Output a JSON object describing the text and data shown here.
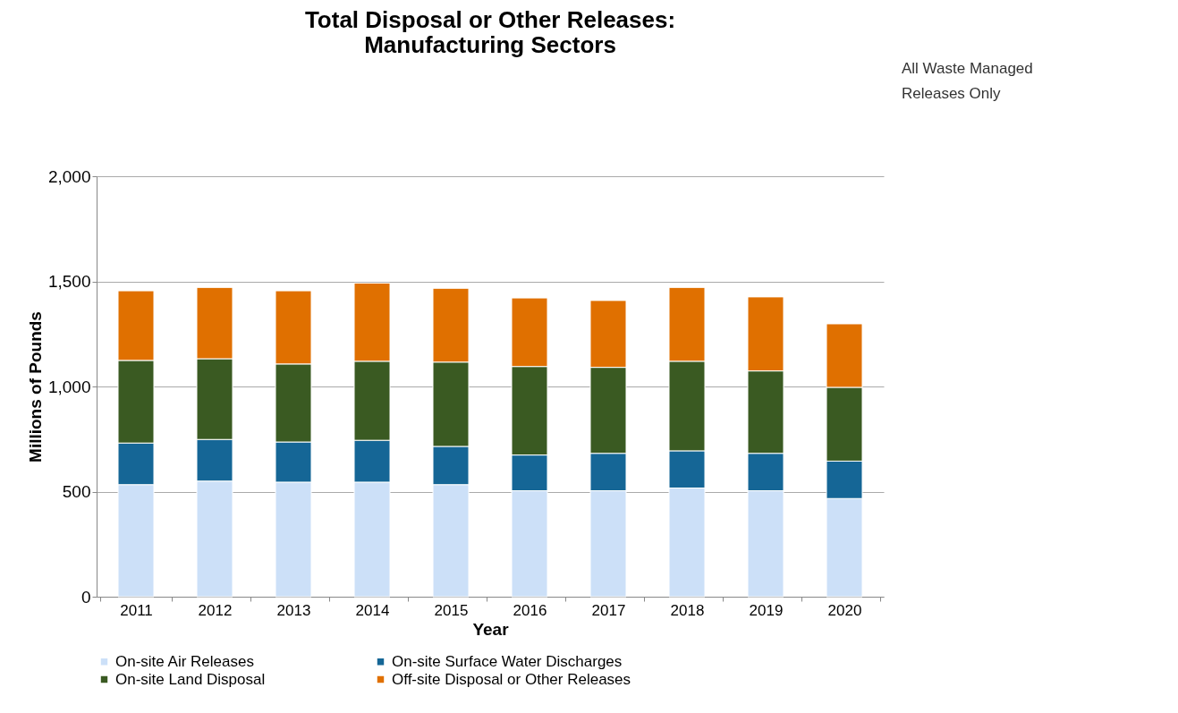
{
  "chart_data": {
    "type": "bar",
    "stacked": true,
    "title": "Total Disposal or Other Releases:\nManufacturing Sectors",
    "xlabel": "Year",
    "ylabel": "Millions of Pounds",
    "categories": [
      "2011",
      "2012",
      "2013",
      "2014",
      "2015",
      "2016",
      "2017",
      "2018",
      "2019",
      "2020"
    ],
    "series": [
      {
        "name": "On-site Air Releases",
        "color": "#cce0f8",
        "values": [
          533,
          550,
          545,
          545,
          533,
          504,
          504,
          517,
          504,
          467
        ]
      },
      {
        "name": "On-site Surface Water Discharges",
        "color": "#156696",
        "values": [
          198,
          198,
          191,
          199,
          182,
          170,
          178,
          177,
          178,
          178
        ]
      },
      {
        "name": "On-site Land Disposal",
        "color": "#3a5a22",
        "values": [
          393,
          384,
          371,
          376,
          401,
          421,
          409,
          426,
          392,
          351
        ]
      },
      {
        "name": "Off-site Disposal or Other Releases",
        "color": "#e07000",
        "values": [
          331,
          339,
          348,
          372,
          351,
          326,
          318,
          351,
          352,
          302
        ]
      }
    ],
    "ylim": [
      0,
      2000
    ],
    "yticks": [
      {
        "value": 0,
        "label": "0"
      },
      {
        "value": 500,
        "label": "500"
      },
      {
        "value": 1000,
        "label": "1,000"
      },
      {
        "value": 1500,
        "label": "1,500"
      },
      {
        "value": 2000,
        "label": "2,000"
      }
    ],
    "grid": "y",
    "legend": "bottom",
    "annotations": [
      "All Waste Managed",
      "Releases Only"
    ]
  }
}
